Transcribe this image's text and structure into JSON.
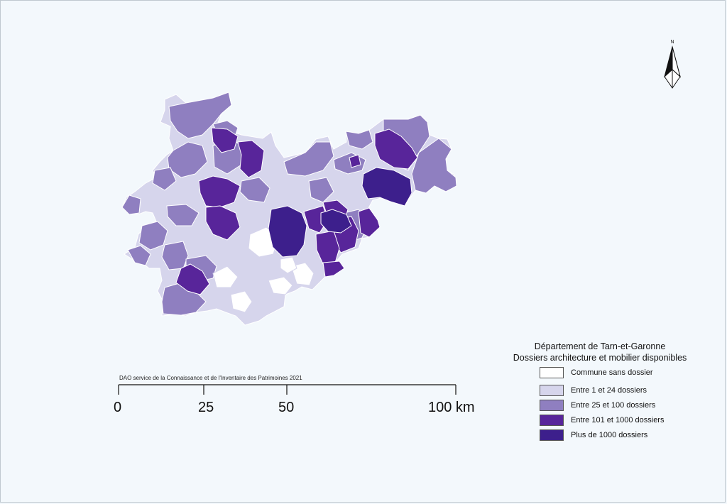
{
  "map": {
    "credit": "DAO service de la Connaissance et de l'Inventaire des Patrimoines 2021",
    "north_label": "N",
    "scale": {
      "ticks": [
        "0",
        "25",
        "50",
        "100 km"
      ]
    },
    "legend": {
      "title_line1": "Département de Tarn-et-Garonne",
      "title_line2": "Dossiers architecture et mobilier disponibles",
      "classes": [
        {
          "label": "Commune sans dossier",
          "color": "#ffffff"
        },
        {
          "label": "Entre 1 et 24 dossiers",
          "color": "#d6d5ec"
        },
        {
          "label": "Entre 25 et 100 dossiers",
          "color": "#8f7fc0"
        },
        {
          "label": "Entre 101 et 1000 dossiers",
          "color": "#58259a"
        },
        {
          "label": "Plus de 1000 dossiers",
          "color": "#3d1f8c"
        }
      ]
    }
  }
}
